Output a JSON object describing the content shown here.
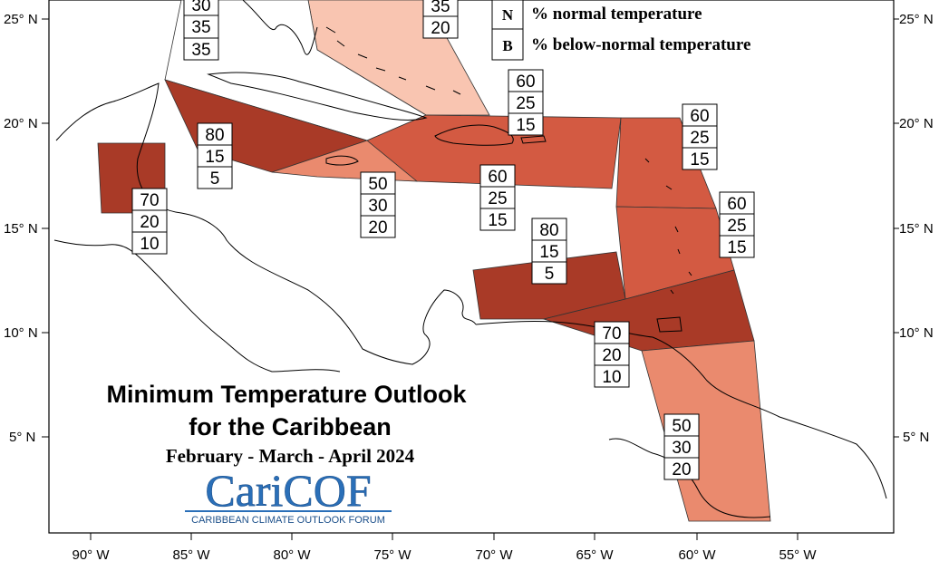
{
  "title": {
    "line1": "Minimum Temperature Outlook",
    "line2": "for the Caribbean",
    "period": "February - March - April 2024"
  },
  "logo": {
    "name": "CariCOF",
    "subtitle": "CARIBBEAN CLIMATE OUTLOOK FORUM"
  },
  "legend": {
    "items": [
      {
        "key": "N",
        "text": "% normal temperature"
      },
      {
        "key": "B",
        "text": "% below-normal temperature"
      }
    ]
  },
  "axes": {
    "lat_labels": [
      "25° N",
      "20° N",
      "15° N",
      "10° N",
      "5° N"
    ],
    "lon_labels": [
      "90° W",
      "85° W",
      "80° W",
      "75° W",
      "70° W",
      "65° W",
      "60° W",
      "55° W"
    ]
  },
  "colors": {
    "level_80": "#a93a27",
    "level_60": "#d35a42",
    "level_70": "#a93a27",
    "level_50": "#ea8a6e",
    "level_35": "#f9c5b1",
    "coastline": "#000000"
  },
  "forecast_boxes": [
    {
      "id": "northwest-bahamas",
      "values": [
        "30",
        "35",
        "35"
      ]
    },
    {
      "id": "southeast-bahamas",
      "values": [
        "35",
        "20"
      ]
    },
    {
      "id": "hispaniola-puerto-rico",
      "values": [
        "60",
        "25",
        "15"
      ]
    },
    {
      "id": "leeward-islands",
      "values": [
        "60",
        "25",
        "15"
      ]
    },
    {
      "id": "western-caribbean",
      "values": [
        "80",
        "15",
        "5"
      ]
    },
    {
      "id": "belize",
      "values": [
        "70",
        "20",
        "10"
      ]
    },
    {
      "id": "jamaica",
      "values": [
        "50",
        "30",
        "20"
      ]
    },
    {
      "id": "central-greater-antilles",
      "values": [
        "60",
        "25",
        "15"
      ]
    },
    {
      "id": "windward-islands",
      "values": [
        "60",
        "25",
        "15"
      ]
    },
    {
      "id": "abc-islands",
      "values": [
        "80",
        "15",
        "5"
      ]
    },
    {
      "id": "trinidad-tobago",
      "values": [
        "70",
        "20",
        "10"
      ]
    },
    {
      "id": "guianas",
      "values": [
        "50",
        "30",
        "20"
      ]
    }
  ]
}
